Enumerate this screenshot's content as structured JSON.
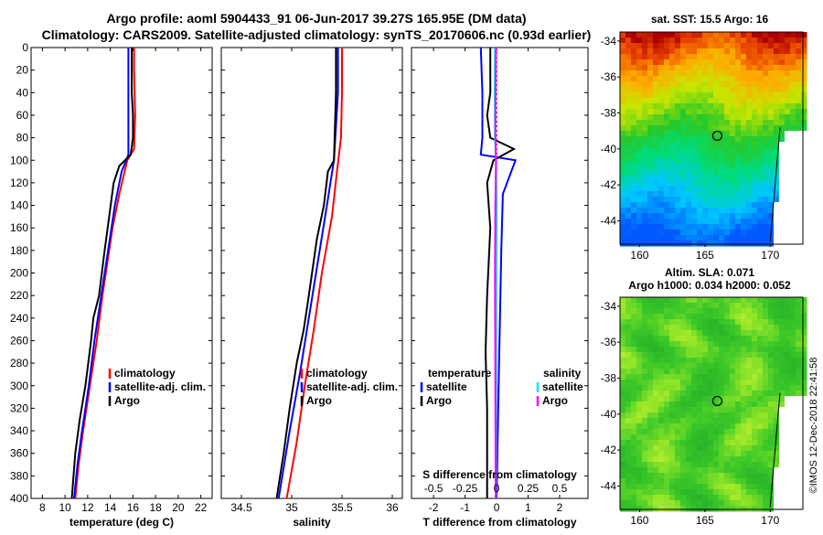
{
  "title_line1": "Argo profile: aoml 5904433_91 06-Jun-2017 39.27S 165.95E (DM data)",
  "title_line2": "Climatology: CARS2009. Satellite-adjusted climatology: synTS_20170606.nc (0.93d earlier)",
  "watermark": "©IMOS 12-Dec-2018 22:41:58",
  "colors": {
    "climatology": "#ff0000",
    "satellite": "#0000ff",
    "argo": "#000000",
    "sal_satellite": "#00e5ff",
    "sal_argo": "#ff00ff"
  },
  "chart_data": [
    {
      "type": "line",
      "name": "temperature",
      "xlabel": "temperature (deg C)",
      "xlim": [
        7,
        23
      ],
      "xticks": [
        "8",
        "10",
        "12",
        "14",
        "16",
        "18",
        "20",
        "22"
      ],
      "ylim": [
        400,
        0
      ],
      "yticks": [
        "0",
        "20",
        "40",
        "60",
        "80",
        "100",
        "120",
        "140",
        "160",
        "180",
        "200",
        "220",
        "240",
        "260",
        "280",
        "300",
        "320",
        "340",
        "360",
        "380",
        "400"
      ],
      "legend": [
        "climatology",
        "satellite-adj. clim.",
        "Argo"
      ],
      "series": [
        {
          "name": "climatology",
          "color": "#ff0000",
          "points": [
            [
              16.1,
              0
            ],
            [
              16.1,
              20
            ],
            [
              16.2,
              60
            ],
            [
              16.1,
              90
            ],
            [
              15.5,
              100
            ],
            [
              14.8,
              130
            ],
            [
              14.2,
              160
            ],
            [
              13.3,
              220
            ],
            [
              12.8,
              260
            ],
            [
              12.2,
              300
            ],
            [
              11.6,
              340
            ],
            [
              11.2,
              370
            ],
            [
              10.9,
              400
            ]
          ]
        },
        {
          "name": "satellite-adj. clim.",
          "color": "#0000ff",
          "points": [
            [
              15.6,
              0
            ],
            [
              15.6,
              40
            ],
            [
              15.6,
              80
            ],
            [
              15.6,
              95
            ],
            [
              15.0,
              110
            ],
            [
              14.4,
              140
            ],
            [
              13.8,
              180
            ],
            [
              13.2,
              220
            ],
            [
              12.6,
              260
            ],
            [
              12.1,
              300
            ],
            [
              11.5,
              340
            ],
            [
              11.1,
              370
            ],
            [
              10.8,
              400
            ]
          ]
        },
        {
          "name": "Argo",
          "color": "#000000",
          "points": [
            [
              15.9,
              0
            ],
            [
              15.9,
              40
            ],
            [
              16.0,
              60
            ],
            [
              16.0,
              80
            ],
            [
              15.8,
              95
            ],
            [
              14.8,
              105
            ],
            [
              14.3,
              120
            ],
            [
              13.9,
              150
            ],
            [
              13.5,
              180
            ],
            [
              13.0,
              220
            ],
            [
              12.5,
              240
            ],
            [
              12.3,
              260
            ],
            [
              11.8,
              300
            ],
            [
              11.3,
              330
            ],
            [
              10.9,
              360
            ],
            [
              10.6,
              400
            ]
          ]
        }
      ]
    },
    {
      "type": "line",
      "name": "salinity",
      "xlabel": "salinity",
      "xlim": [
        34.3,
        36.1
      ],
      "xticks": [
        "34.5",
        "35",
        "35.5",
        "36"
      ],
      "ylim": [
        400,
        0
      ],
      "legend": [
        "climatology",
        "satellite-adj. clim.",
        "Argo"
      ],
      "series": [
        {
          "name": "climatology",
          "color": "#ff0000",
          "points": [
            [
              35.5,
              0
            ],
            [
              35.5,
              40
            ],
            [
              35.49,
              80
            ],
            [
              35.45,
              110
            ],
            [
              35.4,
              150
            ],
            [
              35.3,
              200
            ],
            [
              35.22,
              250
            ],
            [
              35.13,
              300
            ],
            [
              35.05,
              350
            ],
            [
              34.95,
              400
            ]
          ]
        },
        {
          "name": "satellite-adj. clim.",
          "color": "#0000ff",
          "points": [
            [
              35.46,
              0
            ],
            [
              35.46,
              40
            ],
            [
              35.44,
              70
            ],
            [
              35.42,
              100
            ],
            [
              35.35,
              140
            ],
            [
              35.26,
              190
            ],
            [
              35.17,
              240
            ],
            [
              35.08,
              290
            ],
            [
              34.98,
              340
            ],
            [
              34.87,
              400
            ]
          ]
        },
        {
          "name": "Argo",
          "color": "#000000",
          "points": [
            [
              35.44,
              0
            ],
            [
              35.44,
              40
            ],
            [
              35.43,
              70
            ],
            [
              35.42,
              100
            ],
            [
              35.36,
              110
            ],
            [
              35.32,
              140
            ],
            [
              35.25,
              170
            ],
            [
              35.17,
              220
            ],
            [
              35.12,
              250
            ],
            [
              35.05,
              280
            ],
            [
              34.98,
              320
            ],
            [
              34.92,
              360
            ],
            [
              34.85,
              400
            ]
          ]
        }
      ]
    },
    {
      "type": "line",
      "name": "difference",
      "xlabel": "T difference from climatology",
      "xlabel_top": "S difference from climatology",
      "xlim": [
        -2.7,
        2.9
      ],
      "xticks": [
        "-2",
        "-1",
        "0",
        "1",
        "2"
      ],
      "xticks_top": [
        "-0.5",
        "-0.25",
        "0",
        "0.25",
        "0.5"
      ],
      "ylim": [
        400,
        0
      ],
      "legend_left_title": "temperature",
      "legend_left": [
        "satellite",
        "Argo"
      ],
      "legend_right_title": "salinity",
      "legend_right": [
        "satellite",
        "Argo"
      ],
      "series": [
        {
          "name": "T satellite",
          "color": "#0000ff",
          "points": [
            [
              -0.5,
              0
            ],
            [
              -0.45,
              40
            ],
            [
              -0.45,
              80
            ],
            [
              -0.5,
              95
            ],
            [
              0.6,
              100
            ],
            [
              0.2,
              130
            ],
            [
              0.15,
              180
            ],
            [
              0.1,
              250
            ],
            [
              0.05,
              320
            ],
            [
              0.0,
              400
            ]
          ]
        },
        {
          "name": "T Argo",
          "color": "#000000",
          "points": [
            [
              -0.2,
              0
            ],
            [
              -0.2,
              40
            ],
            [
              -0.3,
              60
            ],
            [
              -0.2,
              80
            ],
            [
              0.55,
              90
            ],
            [
              -0.1,
              100
            ],
            [
              -0.3,
              120
            ],
            [
              -0.2,
              160
            ],
            [
              -0.3,
              220
            ],
            [
              -0.35,
              270
            ],
            [
              -0.3,
              320
            ],
            [
              -0.3,
              400
            ]
          ]
        },
        {
          "name": "S satellite",
          "color": "#00e5ff",
          "points": [
            [
              -0.05,
              0
            ],
            [
              -0.06,
              40
            ],
            [
              -0.05,
              80
            ],
            [
              -0.02,
              100
            ],
            [
              0.0,
              140
            ],
            [
              -0.01,
              200
            ],
            [
              -0.01,
              300
            ],
            [
              -0.02,
              400
            ]
          ]
        },
        {
          "name": "S Argo",
          "color": "#ff00ff",
          "points": [
            [
              -0.02,
              0
            ],
            [
              -0.03,
              40
            ],
            [
              -0.04,
              70
            ],
            [
              -0.02,
              100
            ],
            [
              -0.04,
              140
            ],
            [
              -0.05,
              200
            ],
            [
              -0.04,
              300
            ],
            [
              -0.03,
              400
            ]
          ]
        }
      ]
    },
    {
      "type": "heatmap",
      "name": "sst-map",
      "title": "sat. SST: 15.5 Argo: 16",
      "xticks": [
        "160",
        "165",
        "170"
      ],
      "yticks": [
        "-34",
        "-36",
        "-38",
        "-40",
        "-42",
        "-44"
      ],
      "xlim": [
        158.5,
        172.5
      ],
      "ylim": [
        -45.3,
        -33.5
      ],
      "argo_position": [
        165.95,
        -39.27
      ]
    },
    {
      "type": "heatmap",
      "name": "sla-map",
      "title_line1": "Altim. SLA: 0.071",
      "title_line2": "Argo h1000: 0.034 h2000: 0.052",
      "xticks": [
        "160",
        "165",
        "170"
      ],
      "yticks": [
        "-34",
        "-36",
        "-38",
        "-40",
        "-42",
        "-44"
      ],
      "xlim": [
        158.5,
        172.5
      ],
      "ylim": [
        -45.3,
        -33.5
      ],
      "argo_position": [
        165.95,
        -39.27
      ]
    }
  ]
}
